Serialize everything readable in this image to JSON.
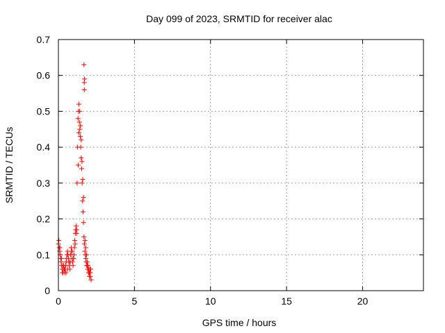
{
  "chart_data": {
    "type": "scatter",
    "title": "Day 099 of 2023, SRMTID for receiver alac",
    "xlabel": "GPS time / hours",
    "ylabel": "SRMTID / TECUs",
    "xlim": [
      0,
      24
    ],
    "ylim": [
      0,
      0.7
    ],
    "xticks": [
      0,
      5,
      10,
      15,
      20
    ],
    "yticks": [
      0,
      0.1,
      0.2,
      0.3,
      0.4,
      0.5,
      0.6,
      0.7
    ],
    "xtick_labels": [
      "0",
      "5",
      "10",
      "15",
      "20"
    ],
    "ytick_labels": [
      "0",
      "0.1",
      "0.2",
      "0.3",
      "0.4",
      "0.5",
      "0.6",
      "0.7"
    ],
    "grid": true,
    "marker": "+",
    "color": "#ff0000",
    "series": [
      {
        "name": "SRMTID",
        "x": [
          0.0,
          0.03,
          0.06,
          0.09,
          0.12,
          0.15,
          0.18,
          0.21,
          0.24,
          0.27,
          0.3,
          0.33,
          0.36,
          0.39,
          0.42,
          0.45,
          0.48,
          0.51,
          0.54,
          0.57,
          0.6,
          0.63,
          0.66,
          0.69,
          0.72,
          0.75,
          0.78,
          0.81,
          0.84,
          0.87,
          0.9,
          0.93,
          0.96,
          0.99,
          1.02,
          1.05,
          1.08,
          1.11,
          1.14,
          1.17,
          1.2,
          1.23,
          1.26,
          1.29,
          1.32,
          1.35,
          1.38,
          1.41,
          1.44,
          1.47,
          1.5,
          1.53,
          1.56,
          1.59,
          1.62,
          1.65,
          1.68,
          1.71,
          1.74,
          1.77,
          1.8,
          1.83,
          1.86,
          1.89,
          1.92,
          1.95,
          1.98,
          2.01,
          2.04,
          2.07,
          2.1,
          2.13,
          0.1,
          0.2,
          0.3,
          0.4,
          0.5,
          0.6,
          0.7,
          0.8,
          0.9,
          1.0,
          1.1,
          1.2,
          1.3,
          1.35,
          1.4,
          1.45,
          1.5,
          1.55,
          1.6,
          1.65,
          1.7,
          1.75,
          1.8,
          1.85,
          1.9,
          1.95,
          2.0,
          2.05,
          2.1,
          2.15,
          1.68,
          1.7,
          1.72
        ],
        "y": [
          0.13,
          0.14,
          0.12,
          0.11,
          0.1,
          0.09,
          0.08,
          0.07,
          0.06,
          0.05,
          0.05,
          0.06,
          0.07,
          0.06,
          0.05,
          0.06,
          0.07,
          0.08,
          0.09,
          0.1,
          0.11,
          0.1,
          0.09,
          0.08,
          0.07,
          0.06,
          0.08,
          0.1,
          0.12,
          0.11,
          0.09,
          0.08,
          0.07,
          0.09,
          0.1,
          0.12,
          0.14,
          0.16,
          0.17,
          0.18,
          0.17,
          0.3,
          0.4,
          0.48,
          0.5,
          0.52,
          0.47,
          0.45,
          0.43,
          0.4,
          0.37,
          0.34,
          0.3,
          0.25,
          0.22,
          0.19,
          0.15,
          0.13,
          0.11,
          0.1,
          0.09,
          0.08,
          0.07,
          0.07,
          0.06,
          0.06,
          0.05,
          0.05,
          0.04,
          0.06,
          0.05,
          0.06,
          0.12,
          0.09,
          0.07,
          0.06,
          0.05,
          0.06,
          0.08,
          0.1,
          0.11,
          0.09,
          0.13,
          0.16,
          0.35,
          0.44,
          0.5,
          0.46,
          0.42,
          0.36,
          0.31,
          0.26,
          0.58,
          0.14,
          0.12,
          0.1,
          0.08,
          0.07,
          0.06,
          0.05,
          0.04,
          0.03,
          0.63,
          0.56,
          0.59
        ]
      }
    ]
  }
}
